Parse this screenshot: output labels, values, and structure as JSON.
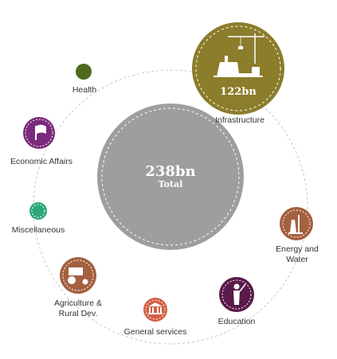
{
  "total": {
    "value": "238bn",
    "label": "Total"
  },
  "sectors": [
    {
      "id": "infrastructure",
      "label": "Infrastructure",
      "value": "122bn",
      "icon": "crane-building-icon",
      "color": "#8b7d2b"
    },
    {
      "id": "health",
      "label": "Health",
      "icon": "health-dot",
      "color": "#4e6a1f"
    },
    {
      "id": "economic-affairs",
      "label": "Economic Affairs",
      "icon": "flag-icon",
      "color": "#7a2a7b"
    },
    {
      "id": "miscellaneous",
      "label": "Miscellaneous",
      "icon": "misc-dot",
      "color": "#2aa876"
    },
    {
      "id": "agriculture",
      "label": "Agriculture &\nRural Dev.",
      "icon": "tractor-icon",
      "color": "#a4603f"
    },
    {
      "id": "general-services",
      "label": "General services",
      "icon": "government-building-icon",
      "color": "#d35e43"
    },
    {
      "id": "education",
      "label": "Education",
      "icon": "teacher-icon",
      "color": "#5a1a4a"
    },
    {
      "id": "energy-water",
      "label": "Energy and\nWater",
      "icon": "power-plant-icon",
      "color": "#a4603f"
    }
  ],
  "colors": {
    "total_fill": "#9e9e9e",
    "orbit": "#c8c8c8",
    "dash": "#ffffff"
  }
}
